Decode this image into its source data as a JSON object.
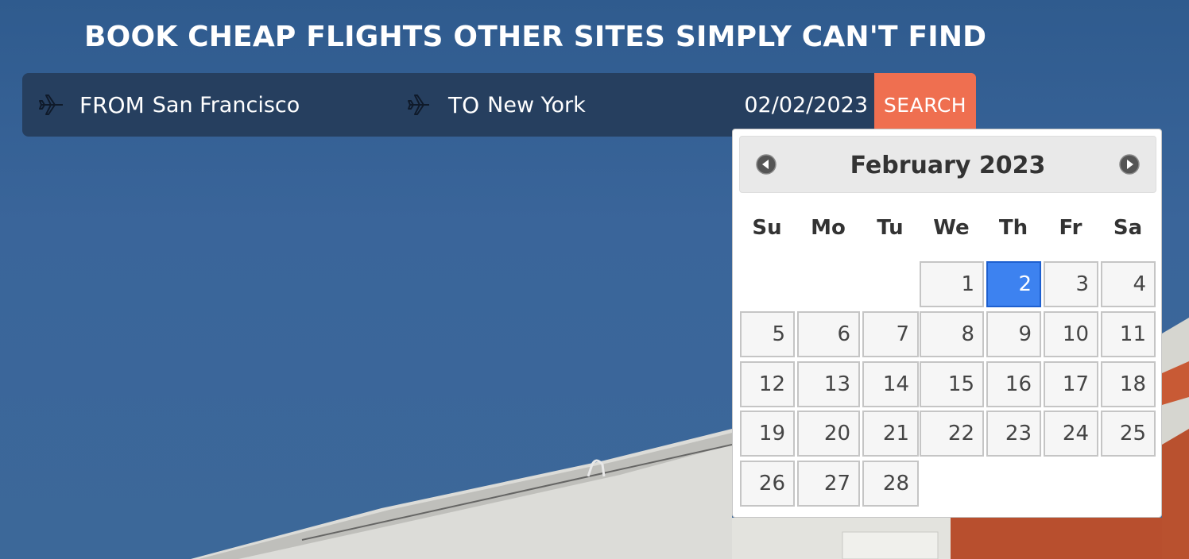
{
  "headline": "BOOK CHEAP FLIGHTS OTHER SITES SIMPLY CAN'T FIND",
  "search": {
    "from_icon": "airplane-icon",
    "from_label": "FROM",
    "from_value": "San Francisco",
    "to_icon": "airplane-icon",
    "to_label": "TO",
    "to_value": "New York",
    "date_value": "02/02/2023",
    "search_label": "SEARCH"
  },
  "datepicker": {
    "title": "February 2023",
    "prev_icon": "chevron-left-circle-icon",
    "next_icon": "chevron-right-circle-icon",
    "weekdays": [
      "Su",
      "Mo",
      "Tu",
      "We",
      "Th",
      "Fr",
      "Sa"
    ],
    "first_weekday_index": 3,
    "days_in_month": 28,
    "selected_day": 2
  },
  "colors": {
    "accent": "#ef6f50",
    "bar": "#263f5f",
    "selected_day": "#3d82f0"
  }
}
